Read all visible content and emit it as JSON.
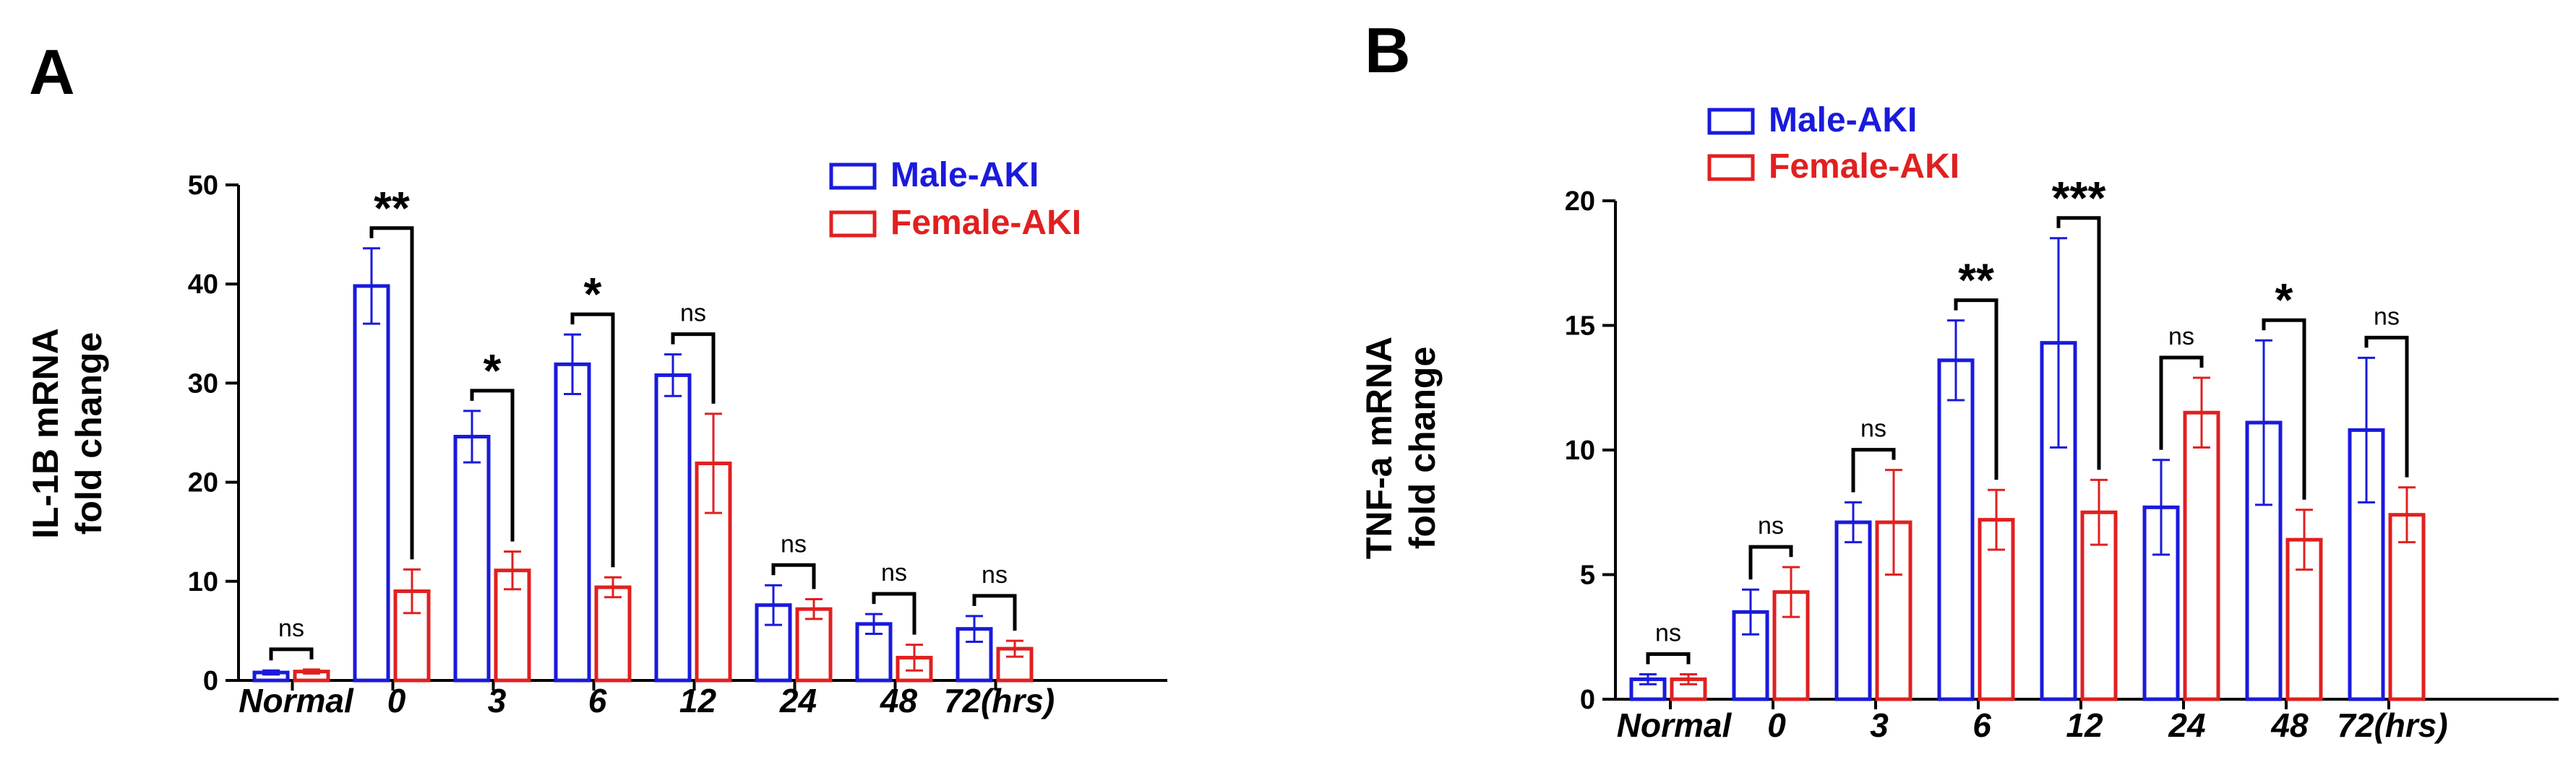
{
  "chart_data": [
    {
      "panel": "A",
      "type": "bar",
      "ylabel": [
        "IL-1B mRNA",
        "fold change"
      ],
      "ylim": [
        0,
        50
      ],
      "yticks": [
        0,
        10,
        20,
        30,
        40,
        50
      ],
      "categories": [
        "Normal",
        "0",
        "3",
        "6",
        "12",
        "24",
        "48",
        "72(hrs)"
      ],
      "series": [
        {
          "name": "Male-AKI",
          "color": "#1a1adc",
          "values": [
            0.8,
            39.8,
            24.6,
            31.9,
            30.8,
            7.6,
            5.7,
            5.2
          ],
          "errors": [
            0.2,
            3.8,
            2.6,
            3.0,
            2.1,
            2.0,
            1.0,
            1.3
          ]
        },
        {
          "name": "Female-AKI",
          "color": "#e02020",
          "values": [
            0.9,
            9.0,
            11.1,
            9.4,
            21.9,
            7.2,
            2.3,
            3.2
          ],
          "errors": [
            0.2,
            2.2,
            1.9,
            1.0,
            5.0,
            1.0,
            1.3,
            0.8
          ]
        }
      ],
      "significance": [
        "ns",
        "**",
        "*",
        "*",
        "ns",
        "ns",
        "ns",
        "ns"
      ],
      "legend": "top-right"
    },
    {
      "panel": "B",
      "type": "bar",
      "ylabel": [
        "TNF-a mRNA",
        "fold change"
      ],
      "ylim": [
        0,
        20
      ],
      "yticks": [
        0,
        5,
        10,
        15,
        20
      ],
      "categories": [
        "Normal",
        "0",
        "3",
        "6",
        "12",
        "24",
        "48",
        "72(hrs)"
      ],
      "series": [
        {
          "name": "Male-AKI",
          "color": "#1a1adc",
          "values": [
            0.8,
            3.5,
            7.1,
            13.6,
            14.3,
            7.7,
            11.1,
            10.8
          ],
          "errors": [
            0.2,
            0.9,
            0.8,
            1.6,
            4.2,
            1.9,
            3.3,
            2.9
          ]
        },
        {
          "name": "Female-AKI",
          "color": "#e02020",
          "values": [
            0.8,
            4.3,
            7.1,
            7.2,
            7.5,
            11.5,
            6.4,
            7.4
          ],
          "errors": [
            0.2,
            1.0,
            2.1,
            1.2,
            1.3,
            1.4,
            1.2,
            1.1
          ]
        }
      ],
      "significance": [
        "ns",
        "ns",
        "ns",
        "**",
        "***",
        "ns",
        "*",
        "ns"
      ],
      "legend": "top-left"
    }
  ]
}
